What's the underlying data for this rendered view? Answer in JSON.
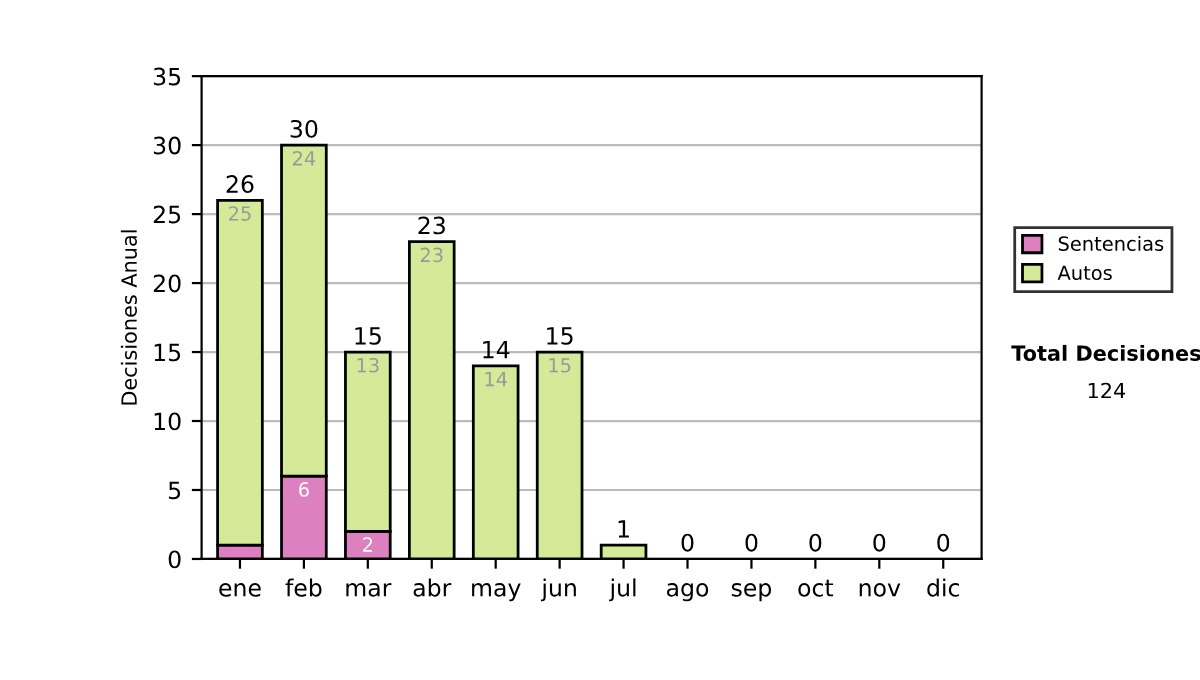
{
  "chart_data": {
    "type": "bar",
    "stacked": true,
    "ylabel": "Decisiones Anual",
    "categories": [
      "ene",
      "feb",
      "mar",
      "abr",
      "may",
      "jun",
      "jul",
      "ago",
      "sep",
      "oct",
      "nov",
      "dic"
    ],
    "series": [
      {
        "name": "Sentencias",
        "color": "#dd80c0",
        "values": [
          1,
          6,
          2,
          0,
          0,
          0,
          0,
          0,
          0,
          0,
          0,
          0
        ],
        "value_labels": [
          null,
          "6",
          "2",
          null,
          null,
          null,
          null,
          null,
          null,
          null,
          null,
          null
        ]
      },
      {
        "name": "Autos",
        "color": "#d5ea98",
        "values": [
          25,
          24,
          13,
          23,
          14,
          15,
          1,
          0,
          0,
          0,
          0,
          0
        ],
        "value_labels": [
          "25",
          "24",
          "13",
          "23",
          "14",
          "15",
          null,
          null,
          null,
          null,
          null,
          null
        ]
      }
    ],
    "totals": [
      "26",
      "30",
      "15",
      "23",
      "14",
      "15",
      "1",
      "0",
      "0",
      "0",
      "0",
      "0"
    ],
    "ylim": [
      0,
      35
    ],
    "yticks": [
      0,
      5,
      10,
      15,
      20,
      25,
      30,
      35
    ],
    "grid": "y",
    "legend": "right",
    "annotations": [
      "Total Decisiones",
      "124"
    ]
  }
}
